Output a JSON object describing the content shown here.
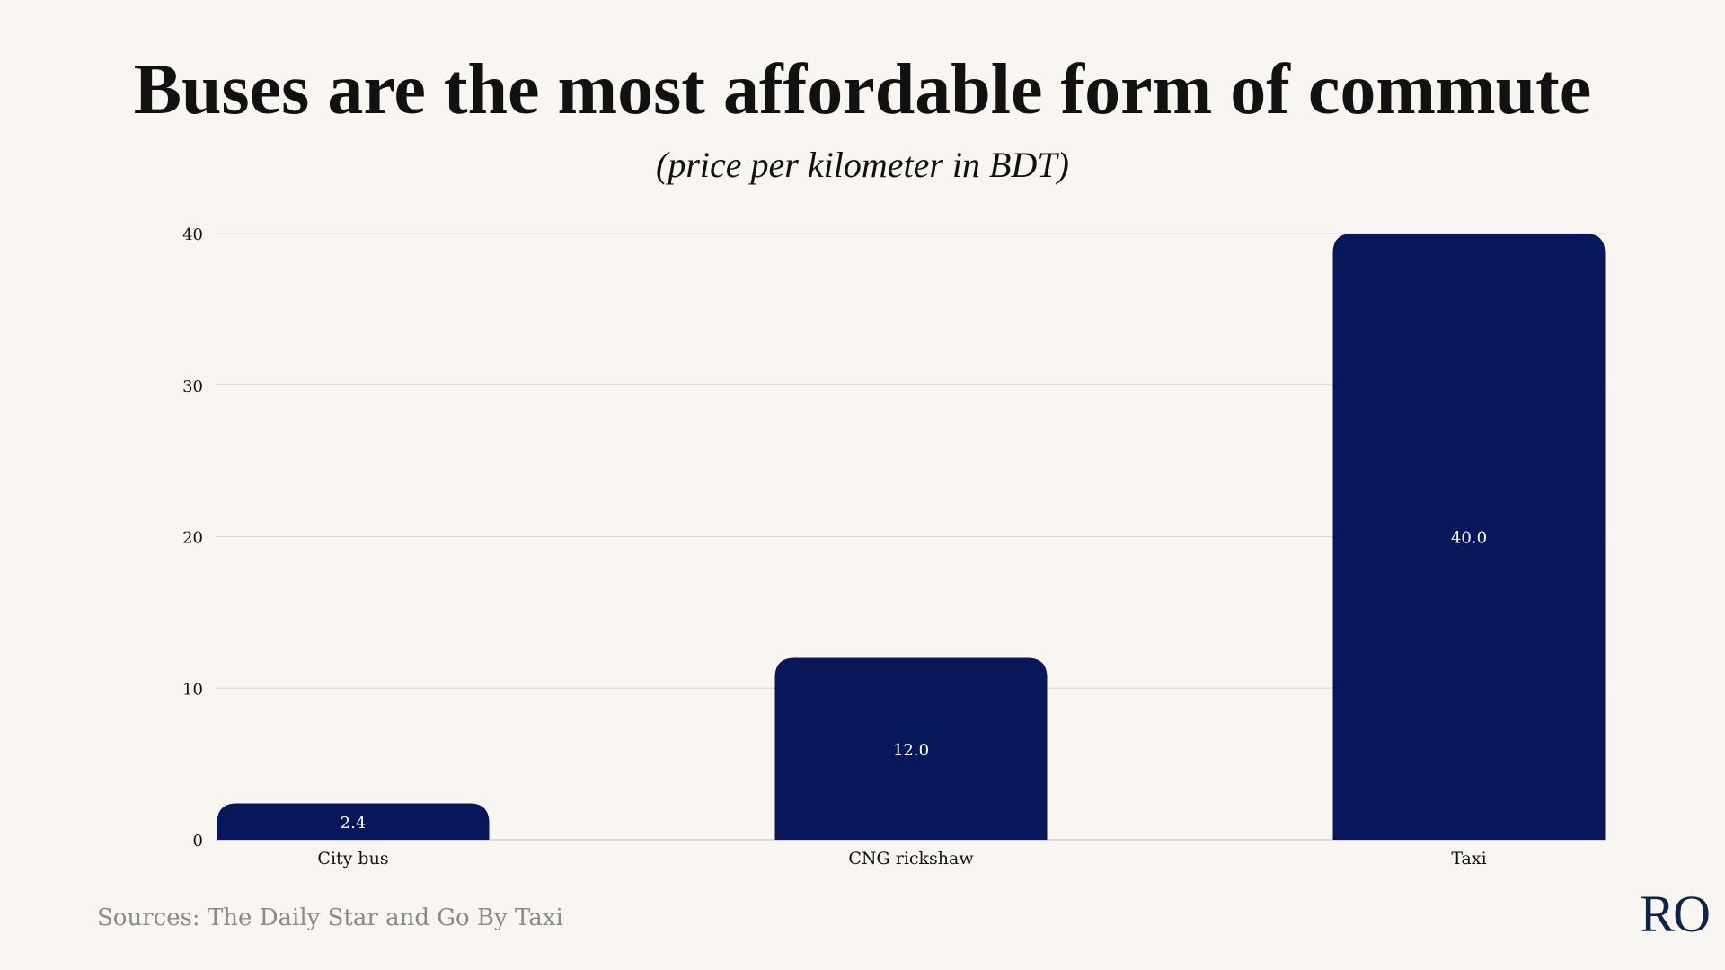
{
  "chart_data": {
    "type": "bar",
    "title": "Buses are the most affordable form of commute",
    "subtitle": "(price per kilometer in BDT)",
    "categories": [
      "City bus",
      "CNG rickshaw",
      "Taxi"
    ],
    "values": [
      2.4,
      12.0,
      40.0
    ],
    "value_labels": [
      "2.4",
      "12.0",
      "40.0"
    ],
    "xlabel": "",
    "ylabel": "",
    "ylim": [
      0,
      40
    ],
    "yticks": [
      0,
      10,
      20,
      30,
      40
    ],
    "grid": true,
    "legend": "none"
  },
  "colors": {
    "bar": "#08175a",
    "bar_label": "#ffffff",
    "gridline": "#d9d6d2",
    "axis_text": "#111111",
    "background": "#f9f6f2"
  },
  "footer": {
    "source": "Sources: The Daily Star and Go By Taxi",
    "logo": "RO"
  }
}
